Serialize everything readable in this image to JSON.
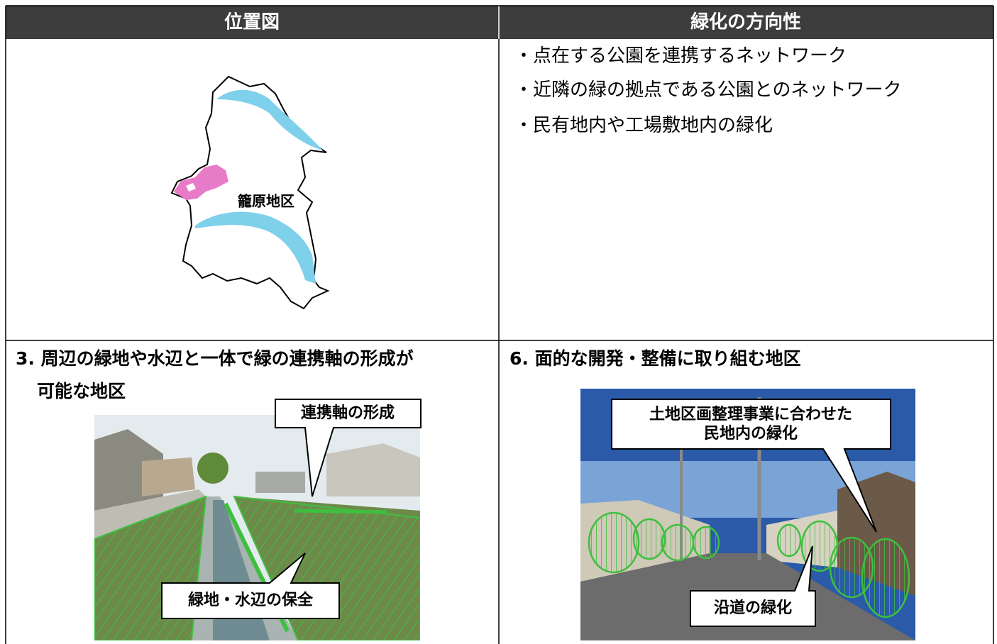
{
  "table": {
    "headers": [
      "位置図",
      "緑化の方向性"
    ],
    "map_label": "籠原地区",
    "directions": [
      "・点在する公園を連携するネットワーク",
      "・近隣の緑の拠点である公園とのネットワーク",
      "・民有地内や工場敷地内の緑化"
    ],
    "sections": [
      {
        "title_lines": [
          "3. 周辺の緑地や水辺と一体で緑の連携軸の形成が",
          "可能な地区"
        ],
        "callouts": [
          [
            "連携軸の形成"
          ],
          [
            "緑地・水辺の保全"
          ]
        ]
      },
      {
        "title_lines": [
          "6. 面的な開発・整備に取り組む地区"
        ],
        "callouts": [
          [
            "土地区画整理事業に合わせた",
            "民地内の緑化"
          ],
          [
            "沿道の緑化"
          ]
        ]
      }
    ]
  }
}
